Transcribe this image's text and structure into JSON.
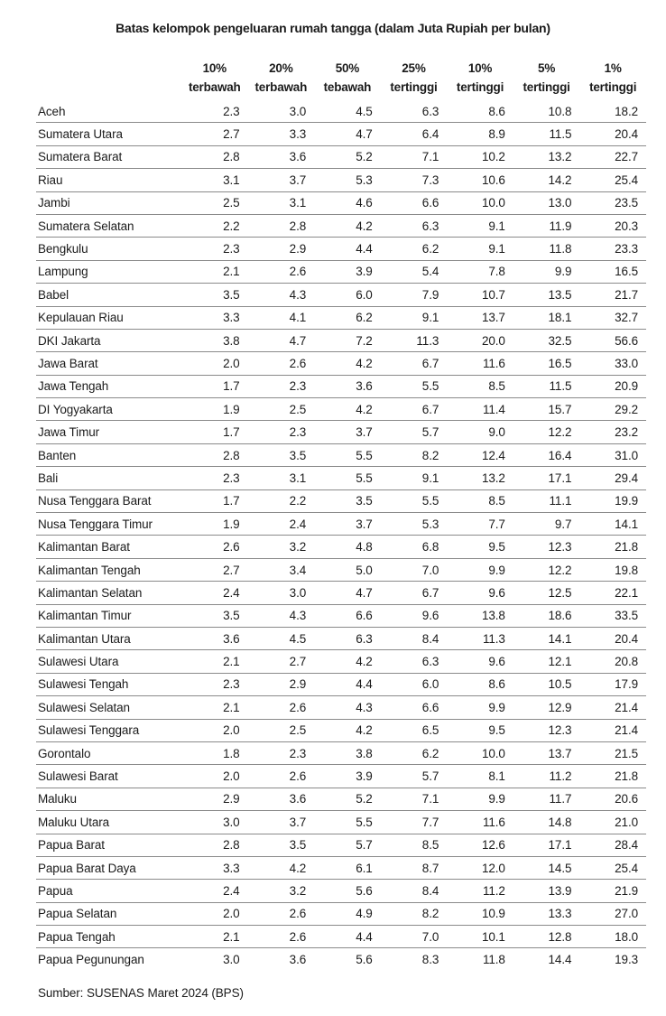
{
  "chart_data": {
    "type": "table",
    "title": "Batas kelompok pengeluaran rumah tangga (dalam Juta Rupiah per bulan)",
    "source": "Sumber: SUSENAS Maret 2024 (BPS)",
    "columns": [
      {
        "line1": "10%",
        "line2": "terbawah"
      },
      {
        "line1": "20%",
        "line2": "terbawah"
      },
      {
        "line1": "50%",
        "line2": "tebawah"
      },
      {
        "line1": "25%",
        "line2": "tertinggi"
      },
      {
        "line1": "10%",
        "line2": "tertinggi"
      },
      {
        "line1": "5%",
        "line2": "tertinggi"
      },
      {
        "line1": "1%",
        "line2": "tertinggi"
      }
    ],
    "rows": [
      {
        "province": "Aceh",
        "values": [
          "2.3",
          "3.0",
          "4.5",
          "6.3",
          "8.6",
          "10.8",
          "18.2"
        ]
      },
      {
        "province": "Sumatera Utara",
        "values": [
          "2.7",
          "3.3",
          "4.7",
          "6.4",
          "8.9",
          "11.5",
          "20.4"
        ]
      },
      {
        "province": "Sumatera Barat",
        "values": [
          "2.8",
          "3.6",
          "5.2",
          "7.1",
          "10.2",
          "13.2",
          "22.7"
        ]
      },
      {
        "province": "Riau",
        "values": [
          "3.1",
          "3.7",
          "5.3",
          "7.3",
          "10.6",
          "14.2",
          "25.4"
        ]
      },
      {
        "province": "Jambi",
        "values": [
          "2.5",
          "3.1",
          "4.6",
          "6.6",
          "10.0",
          "13.0",
          "23.5"
        ]
      },
      {
        "province": "Sumatera Selatan",
        "values": [
          "2.2",
          "2.8",
          "4.2",
          "6.3",
          "9.1",
          "11.9",
          "20.3"
        ]
      },
      {
        "province": "Bengkulu",
        "values": [
          "2.3",
          "2.9",
          "4.4",
          "6.2",
          "9.1",
          "11.8",
          "23.3"
        ]
      },
      {
        "province": "Lampung",
        "values": [
          "2.1",
          "2.6",
          "3.9",
          "5.4",
          "7.8",
          "9.9",
          "16.5"
        ]
      },
      {
        "province": "Babel",
        "values": [
          "3.5",
          "4.3",
          "6.0",
          "7.9",
          "10.7",
          "13.5",
          "21.7"
        ]
      },
      {
        "province": "Kepulauan Riau",
        "values": [
          "3.3",
          "4.1",
          "6.2",
          "9.1",
          "13.7",
          "18.1",
          "32.7"
        ]
      },
      {
        "province": "DKI Jakarta",
        "values": [
          "3.8",
          "4.7",
          "7.2",
          "11.3",
          "20.0",
          "32.5",
          "56.6"
        ]
      },
      {
        "province": "Jawa Barat",
        "values": [
          "2.0",
          "2.6",
          "4.2",
          "6.7",
          "11.6",
          "16.5",
          "33.0"
        ]
      },
      {
        "province": "Jawa Tengah",
        "values": [
          "1.7",
          "2.3",
          "3.6",
          "5.5",
          "8.5",
          "11.5",
          "20.9"
        ]
      },
      {
        "province": "DI Yogyakarta",
        "values": [
          "1.9",
          "2.5",
          "4.2",
          "6.7",
          "11.4",
          "15.7",
          "29.2"
        ]
      },
      {
        "province": "Jawa Timur",
        "values": [
          "1.7",
          "2.3",
          "3.7",
          "5.7",
          "9.0",
          "12.2",
          "23.2"
        ]
      },
      {
        "province": "Banten",
        "values": [
          "2.8",
          "3.5",
          "5.5",
          "8.2",
          "12.4",
          "16.4",
          "31.0"
        ]
      },
      {
        "province": "Bali",
        "values": [
          "2.3",
          "3.1",
          "5.5",
          "9.1",
          "13.2",
          "17.1",
          "29.4"
        ]
      },
      {
        "province": "Nusa Tenggara Barat",
        "values": [
          "1.7",
          "2.2",
          "3.5",
          "5.5",
          "8.5",
          "11.1",
          "19.9"
        ]
      },
      {
        "province": "Nusa Tenggara Timur",
        "values": [
          "1.9",
          "2.4",
          "3.7",
          "5.3",
          "7.7",
          "9.7",
          "14.1"
        ]
      },
      {
        "province": "Kalimantan Barat",
        "values": [
          "2.6",
          "3.2",
          "4.8",
          "6.8",
          "9.5",
          "12.3",
          "21.8"
        ]
      },
      {
        "province": "Kalimantan Tengah",
        "values": [
          "2.7",
          "3.4",
          "5.0",
          "7.0",
          "9.9",
          "12.2",
          "19.8"
        ]
      },
      {
        "province": "Kalimantan Selatan",
        "values": [
          "2.4",
          "3.0",
          "4.7",
          "6.7",
          "9.6",
          "12.5",
          "22.1"
        ]
      },
      {
        "province": "Kalimantan Timur",
        "values": [
          "3.5",
          "4.3",
          "6.6",
          "9.6",
          "13.8",
          "18.6",
          "33.5"
        ]
      },
      {
        "province": "Kalimantan Utara",
        "values": [
          "3.6",
          "4.5",
          "6.3",
          "8.4",
          "11.3",
          "14.1",
          "20.4"
        ]
      },
      {
        "province": "Sulawesi Utara",
        "values": [
          "2.1",
          "2.7",
          "4.2",
          "6.3",
          "9.6",
          "12.1",
          "20.8"
        ]
      },
      {
        "province": "Sulawesi Tengah",
        "values": [
          "2.3",
          "2.9",
          "4.4",
          "6.0",
          "8.6",
          "10.5",
          "17.9"
        ]
      },
      {
        "province": "Sulawesi Selatan",
        "values": [
          "2.1",
          "2.6",
          "4.3",
          "6.6",
          "9.9",
          "12.9",
          "21.4"
        ]
      },
      {
        "province": "Sulawesi Tenggara",
        "values": [
          "2.0",
          "2.5",
          "4.2",
          "6.5",
          "9.5",
          "12.3",
          "21.4"
        ]
      },
      {
        "province": "Gorontalo",
        "values": [
          "1.8",
          "2.3",
          "3.8",
          "6.2",
          "10.0",
          "13.7",
          "21.5"
        ]
      },
      {
        "province": "Sulawesi Barat",
        "values": [
          "2.0",
          "2.6",
          "3.9",
          "5.7",
          "8.1",
          "11.2",
          "21.8"
        ]
      },
      {
        "province": "Maluku",
        "values": [
          "2.9",
          "3.6",
          "5.2",
          "7.1",
          "9.9",
          "11.7",
          "20.6"
        ]
      },
      {
        "province": "Maluku Utara",
        "values": [
          "3.0",
          "3.7",
          "5.5",
          "7.7",
          "11.6",
          "14.8",
          "21.0"
        ]
      },
      {
        "province": "Papua Barat",
        "values": [
          "2.8",
          "3.5",
          "5.7",
          "8.5",
          "12.6",
          "17.1",
          "28.4"
        ]
      },
      {
        "province": "Papua Barat Daya",
        "values": [
          "3.3",
          "4.2",
          "6.1",
          "8.7",
          "12.0",
          "14.5",
          "25.4"
        ]
      },
      {
        "province": "Papua",
        "values": [
          "2.4",
          "3.2",
          "5.6",
          "8.4",
          "11.2",
          "13.9",
          "21.9"
        ]
      },
      {
        "province": "Papua Selatan",
        "values": [
          "2.0",
          "2.6",
          "4.9",
          "8.2",
          "10.9",
          "13.3",
          "27.0"
        ]
      },
      {
        "province": "Papua Tengah",
        "values": [
          "2.1",
          "2.6",
          "4.4",
          "7.0",
          "10.1",
          "12.8",
          "18.0"
        ]
      },
      {
        "province": "Papua Pegunungan",
        "values": [
          "3.0",
          "3.6",
          "5.6",
          "8.3",
          "11.8",
          "14.4",
          "19.3"
        ]
      }
    ]
  },
  "colors": {
    "text": "#1b1b1b",
    "rule": "#8a8a8a",
    "background": "#ffffff"
  }
}
